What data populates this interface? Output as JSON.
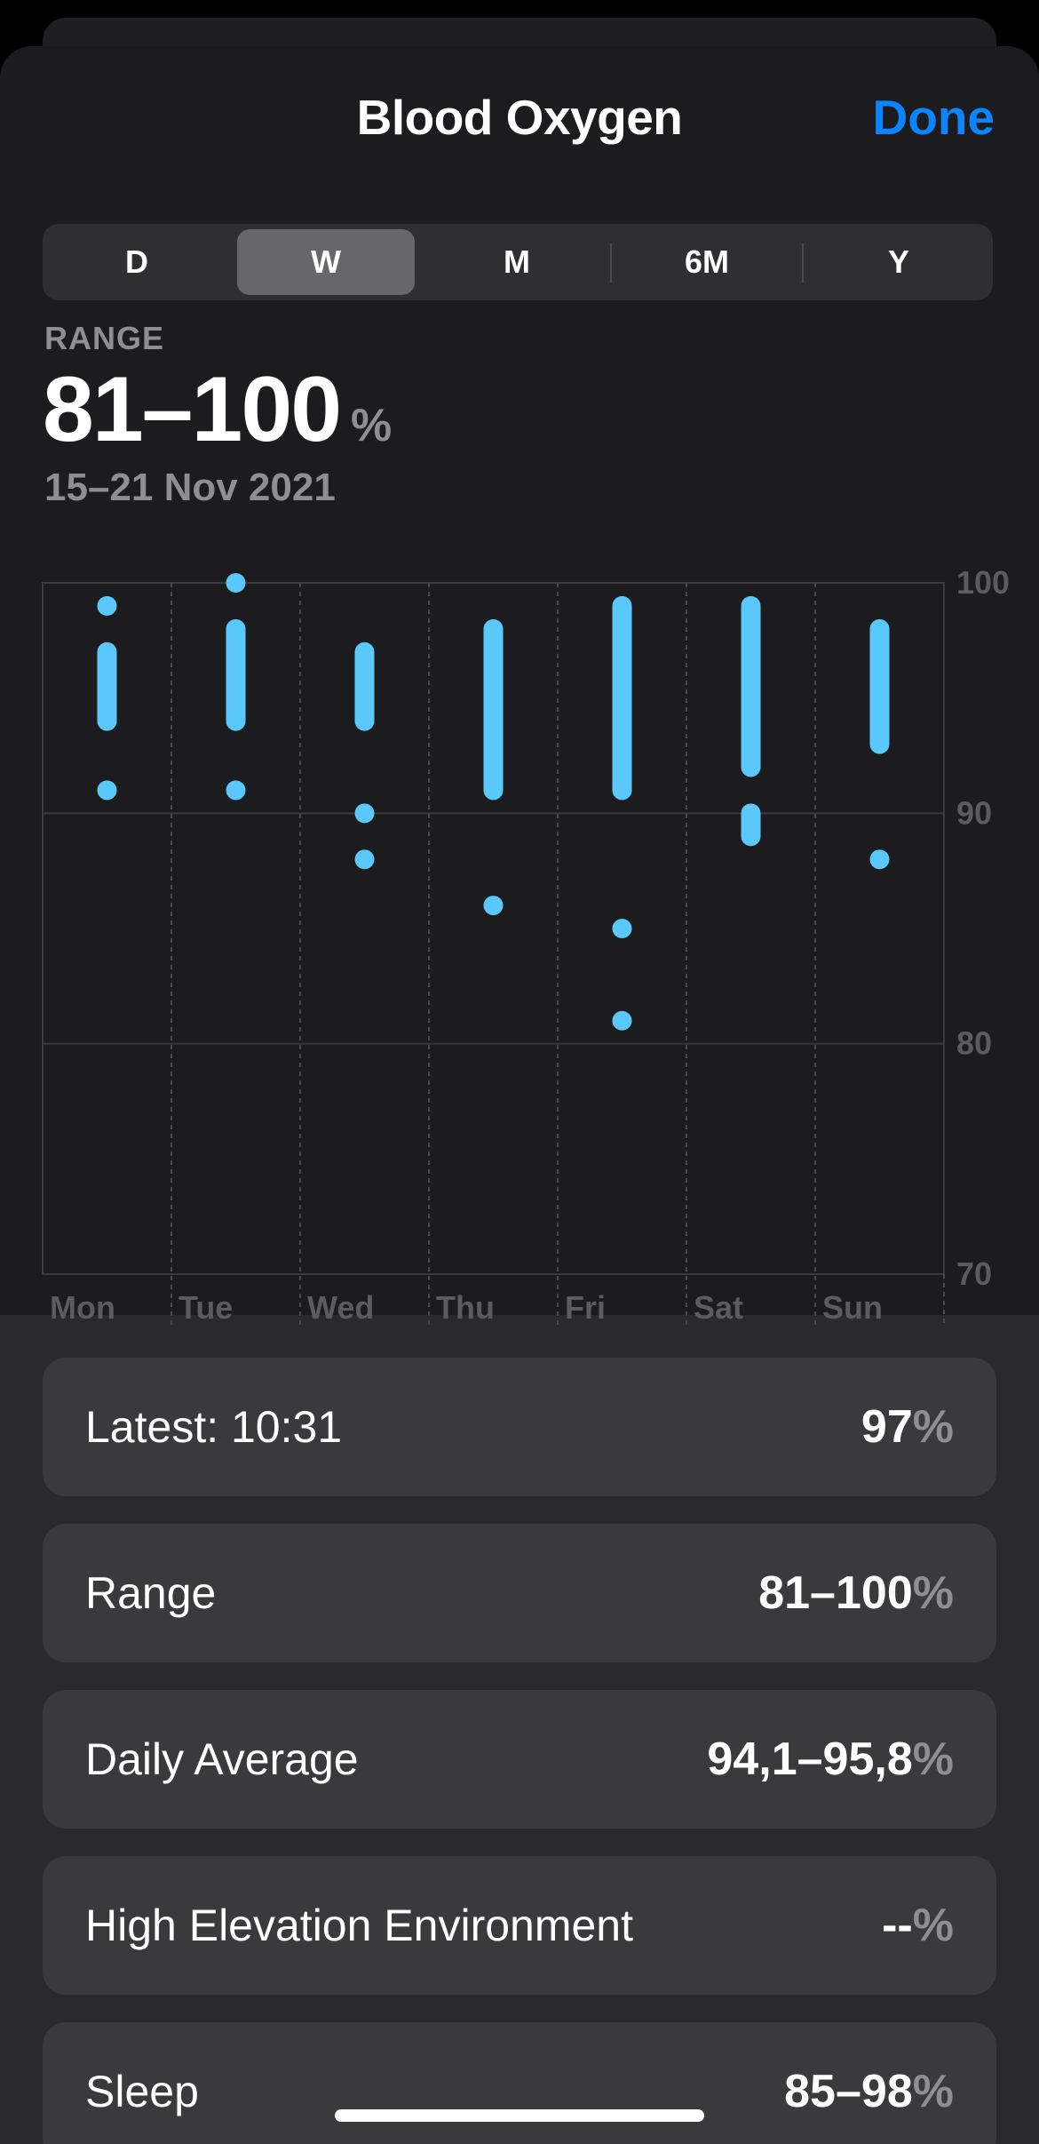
{
  "colors": {
    "accent": "#0a84ff",
    "data_bar": "#5ac8fa",
    "background": "#1c1c1e",
    "card": "#3a3a3c",
    "secondary_text": "#8e8e93"
  },
  "header": {
    "title": "Blood Oxygen",
    "done_label": "Done"
  },
  "time_range": {
    "options": [
      "D",
      "W",
      "M",
      "6M",
      "Y"
    ],
    "selected": "W"
  },
  "summary": {
    "label": "RANGE",
    "value": "81–100",
    "unit": "%",
    "date_range": "15–21 Nov 2021"
  },
  "chart_data": {
    "type": "range-dot",
    "categories": [
      "Mon",
      "Tue",
      "Wed",
      "Thu",
      "Fri",
      "Sat",
      "Sun"
    ],
    "ylim": [
      70,
      100
    ],
    "y_ticks": [
      100,
      90,
      80,
      70
    ],
    "y_axis_side": "right",
    "grid": true,
    "series": [
      {
        "day": "Mon",
        "ranges": [
          [
            99,
            99
          ],
          [
            94,
            97
          ],
          [
            91,
            91
          ]
        ]
      },
      {
        "day": "Tue",
        "ranges": [
          [
            100,
            100
          ],
          [
            94,
            98
          ],
          [
            91,
            91
          ]
        ]
      },
      {
        "day": "Wed",
        "ranges": [
          [
            94,
            97
          ],
          [
            90,
            90
          ],
          [
            88,
            88
          ]
        ]
      },
      {
        "day": "Thu",
        "ranges": [
          [
            91,
            98
          ],
          [
            86,
            86
          ]
        ]
      },
      {
        "day": "Fri",
        "ranges": [
          [
            91,
            99
          ],
          [
            85,
            85
          ],
          [
            81,
            81
          ]
        ]
      },
      {
        "day": "Sat",
        "ranges": [
          [
            92,
            99
          ],
          [
            89,
            90
          ]
        ]
      },
      {
        "day": "Sun",
        "ranges": [
          [
            93,
            98
          ],
          [
            88,
            88
          ]
        ]
      }
    ]
  },
  "stats": [
    {
      "label": "Latest: 10:31",
      "value": "97",
      "unit": "%"
    },
    {
      "label": "Range",
      "value": "81–100",
      "unit": "%"
    },
    {
      "label": "Daily Average",
      "value": "94,1–95,8",
      "unit": "%"
    },
    {
      "label": "High Elevation Environment",
      "value": "--",
      "unit": "%"
    },
    {
      "label": "Sleep",
      "value": "85–98",
      "unit": "%"
    }
  ]
}
